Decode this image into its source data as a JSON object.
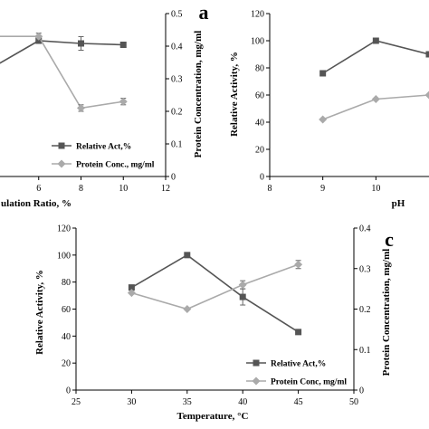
{
  "chart_data": [
    {
      "panel": "a",
      "type": "line",
      "xlabel": "ulation Ratio, %",
      "y2label": "Protein Concentration, mg/ml",
      "xlim": [
        4,
        12
      ],
      "x_ticks": [
        "6",
        "8",
        "10",
        "12"
      ],
      "ylim": [
        0,
        120
      ],
      "y2lim": [
        0,
        0.5
      ],
      "y2_ticks": [
        "0",
        "0.1",
        "0.2",
        "0.3",
        "0.4",
        "0.5"
      ],
      "grid": false,
      "legend_position": "lower-left",
      "series": [
        {
          "name": "Relative Act,%",
          "axis": "left",
          "color": "#555555",
          "marker": "square",
          "x": [
            4,
            6,
            8,
            10
          ],
          "y": [
            82,
            100,
            98,
            97
          ],
          "err": [
            0,
            0,
            5,
            0
          ]
        },
        {
          "name": "Protein Conc., mg/ml",
          "axis": "right",
          "color": "#aaaaaa",
          "marker": "diamond",
          "x": [
            4,
            6,
            8,
            10
          ],
          "y": [
            0.43,
            0.43,
            0.21,
            0.23
          ],
          "err": [
            0,
            0.01,
            0.01,
            0.01
          ]
        }
      ]
    },
    {
      "panel": "b",
      "type": "line",
      "xlabel": "pH",
      "ylabel": "Relative Activity, %",
      "xlim": [
        8,
        11
      ],
      "x_ticks": [
        "8",
        "9",
        "10"
      ],
      "ylim": [
        0,
        120
      ],
      "y_ticks": [
        "0",
        "20",
        "40",
        "60",
        "80",
        "100",
        "120"
      ],
      "grid": false,
      "series": [
        {
          "axis": "left",
          "color": "#555555",
          "marker": "square",
          "x": [
            9,
            10,
            11
          ],
          "y": [
            76,
            100,
            90
          ]
        },
        {
          "axis": "right",
          "color": "#aaaaaa",
          "marker": "diamond",
          "x": [
            9,
            10,
            11
          ],
          "y": [
            0.14,
            0.19,
            0.2
          ]
        }
      ]
    },
    {
      "panel": "c",
      "type": "line",
      "xlabel": "Temperature, °C",
      "ylabel": "Relative Activity, %",
      "y2label": "Protein Concentration, mg/ml",
      "xlim": [
        25,
        50
      ],
      "x_ticks": [
        "25",
        "30",
        "35",
        "40",
        "45",
        "50"
      ],
      "ylim": [
        0,
        120
      ],
      "y_ticks": [
        "0",
        "20",
        "40",
        "60",
        "80",
        "100",
        "120"
      ],
      "y2lim": [
        0,
        0.4
      ],
      "y2_ticks": [
        "0",
        "0.1",
        "0.2",
        "0.3",
        "0.4"
      ],
      "grid": false,
      "legend_position": "lower-right",
      "series": [
        {
          "name": "Relative Act,%",
          "axis": "left",
          "color": "#555555",
          "marker": "square",
          "x": [
            30,
            35,
            40,
            45
          ],
          "y": [
            76,
            100,
            69,
            43
          ],
          "err": [
            0,
            0,
            6,
            0
          ]
        },
        {
          "name": "Protein Conc, mg/ml",
          "axis": "right",
          "color": "#aaaaaa",
          "marker": "diamond",
          "x": [
            30,
            35,
            40,
            45
          ],
          "y": [
            0.24,
            0.2,
            0.26,
            0.31
          ],
          "err": [
            0,
            0,
            0.01,
            0.01
          ]
        }
      ]
    }
  ]
}
